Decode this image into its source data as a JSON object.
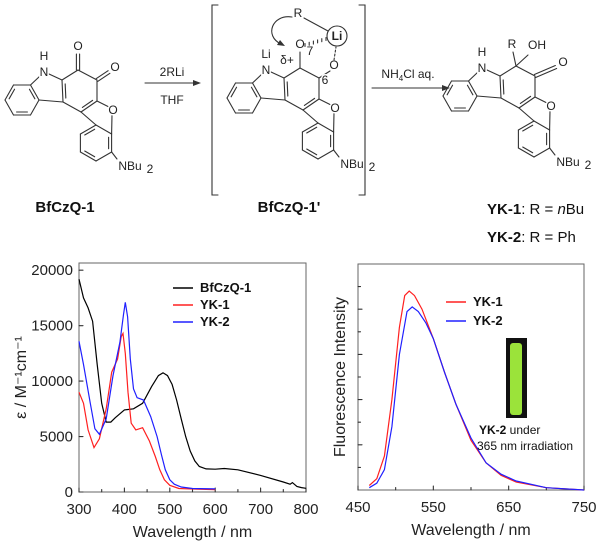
{
  "scheme": {
    "atoms": {
      "O": "O",
      "N": "N",
      "H": "H",
      "Li": "Li",
      "R": "R",
      "OH": "OH",
      "NBu": "NBu",
      "sub2": "2",
      "delta": "δ+",
      "pos7": "7",
      "pos6": "6"
    },
    "step1": {
      "above": "2RLi",
      "below": "THF"
    },
    "step2": {
      "nh": "NH",
      "sub": "4",
      "rest": "Cl aq."
    },
    "compounds": {
      "start": "BfCzQ-1",
      "intermediate": "BfCzQ-1'",
      "yk1": {
        "name": "YK-1",
        "eq": ": R = ",
        "italic": "n",
        "rest": "Bu"
      },
      "yk2": {
        "name": "YK-2",
        "eq": ": R = Ph"
      }
    }
  },
  "chart_data": [
    {
      "type": "line",
      "title": "",
      "xlabel": "Wavelength / nm",
      "ylabel": "ε / M⁻¹cm⁻¹",
      "xlim": [
        300,
        800
      ],
      "ylim": [
        0,
        20650
      ],
      "x_ticks": [
        "300",
        "400",
        "500",
        "600",
        "700",
        "800"
      ],
      "y_ticks": [
        "0",
        "5000",
        "10000",
        "15000",
        "20000"
      ],
      "legend_position": "top-right",
      "series": [
        {
          "name": "BfCzQ-1",
          "color": "#000000",
          "points": [
            [
              300,
              19200
            ],
            [
              310,
              17500
            ],
            [
              320,
              16600
            ],
            [
              330,
              15400
            ],
            [
              340,
              11500
            ],
            [
              350,
              8000
            ],
            [
              360,
              6300
            ],
            [
              370,
              6300
            ],
            [
              380,
              6700
            ],
            [
              400,
              7400
            ],
            [
              420,
              7500
            ],
            [
              440,
              8000
            ],
            [
              460,
              9500
            ],
            [
              475,
              10500
            ],
            [
              485,
              10750
            ],
            [
              495,
              10500
            ],
            [
              505,
              9700
            ],
            [
              515,
              8300
            ],
            [
              525,
              6600
            ],
            [
              535,
              5000
            ],
            [
              545,
              3700
            ],
            [
              555,
              2800
            ],
            [
              565,
              2300
            ],
            [
              580,
              2080
            ],
            [
              600,
              2060
            ],
            [
              620,
              2120
            ],
            [
              650,
              2000
            ],
            [
              700,
              1500
            ],
            [
              750,
              900
            ],
            [
              765,
              700
            ],
            [
              770,
              850
            ],
            [
              780,
              500
            ],
            [
              790,
              400
            ],
            [
              800,
              330
            ]
          ]
        },
        {
          "name": "YK-1",
          "color": "#ff2020",
          "points": [
            [
              300,
              9000
            ],
            [
              310,
              8000
            ],
            [
              320,
              5600
            ],
            [
              333,
              4000
            ],
            [
              345,
              4800
            ],
            [
              360,
              7500
            ],
            [
              372,
              10800
            ],
            [
              385,
              12000
            ],
            [
              393,
              14000
            ],
            [
              397,
              14300
            ],
            [
              402,
              12500
            ],
            [
              408,
              9000
            ],
            [
              415,
              6200
            ],
            [
              425,
              5600
            ],
            [
              440,
              5800
            ],
            [
              455,
              4600
            ],
            [
              468,
              3200
            ],
            [
              478,
              2000
            ],
            [
              488,
              1100
            ],
            [
              500,
              600
            ],
            [
              520,
              320
            ],
            [
              560,
              250
            ],
            [
              600,
              220
            ]
          ]
        },
        {
          "name": "YK-2",
          "color": "#2020ff",
          "points": [
            [
              300,
              13600
            ],
            [
              310,
              11500
            ],
            [
              325,
              8000
            ],
            [
              335,
              5700
            ],
            [
              345,
              5200
            ],
            [
              360,
              6600
            ],
            [
              375,
              10500
            ],
            [
              390,
              13500
            ],
            [
              398,
              16000
            ],
            [
              402,
              17100
            ],
            [
              407,
              15800
            ],
            [
              413,
              12000
            ],
            [
              420,
              9300
            ],
            [
              428,
              8500
            ],
            [
              442,
              8300
            ],
            [
              458,
              6800
            ],
            [
              472,
              5000
            ],
            [
              482,
              3300
            ],
            [
              490,
              2000
            ],
            [
              500,
              1100
            ],
            [
              510,
              700
            ],
            [
              525,
              450
            ],
            [
              550,
              320
            ],
            [
              600,
              280
            ]
          ]
        }
      ]
    },
    {
      "type": "line",
      "title": "",
      "xlabel": "Wavelength / nm",
      "ylabel": "Fluorescence Intensity",
      "xlim": [
        450,
        750
      ],
      "ylim": [
        0,
        1
      ],
      "x_ticks": [
        "450",
        "550",
        "650",
        "750"
      ],
      "legend_position": "top-right",
      "inset": {
        "label_bold": "YK-2",
        "label_rest": " under",
        "label_line2": "365 nm irradiation",
        "vial_color": "#9be33a"
      },
      "series": [
        {
          "name": "YK-1",
          "color": "#ff2020",
          "points": [
            [
              465,
              0.02
            ],
            [
              475,
              0.05
            ],
            [
              485,
              0.15
            ],
            [
              495,
              0.4
            ],
            [
              505,
              0.72
            ],
            [
              512,
              0.86
            ],
            [
              518,
              0.88
            ],
            [
              525,
              0.86
            ],
            [
              535,
              0.8
            ],
            [
              550,
              0.67
            ],
            [
              565,
              0.52
            ],
            [
              580,
              0.38
            ],
            [
              600,
              0.22
            ],
            [
              620,
              0.12
            ],
            [
              640,
              0.065
            ],
            [
              660,
              0.035
            ],
            [
              700,
              0.01
            ],
            [
              750,
              0.0
            ]
          ]
        },
        {
          "name": "YK-2",
          "color": "#2020ff",
          "points": [
            [
              465,
              0.01
            ],
            [
              475,
              0.03
            ],
            [
              485,
              0.09
            ],
            [
              495,
              0.28
            ],
            [
              505,
              0.6
            ],
            [
              515,
              0.79
            ],
            [
              522,
              0.81
            ],
            [
              530,
              0.79
            ],
            [
              540,
              0.74
            ],
            [
              550,
              0.67
            ],
            [
              565,
              0.52
            ],
            [
              580,
              0.38
            ],
            [
              600,
              0.23
            ],
            [
              620,
              0.12
            ],
            [
              640,
              0.07
            ],
            [
              660,
              0.04
            ],
            [
              700,
              0.01
            ],
            [
              750,
              0.0
            ]
          ]
        }
      ]
    }
  ]
}
